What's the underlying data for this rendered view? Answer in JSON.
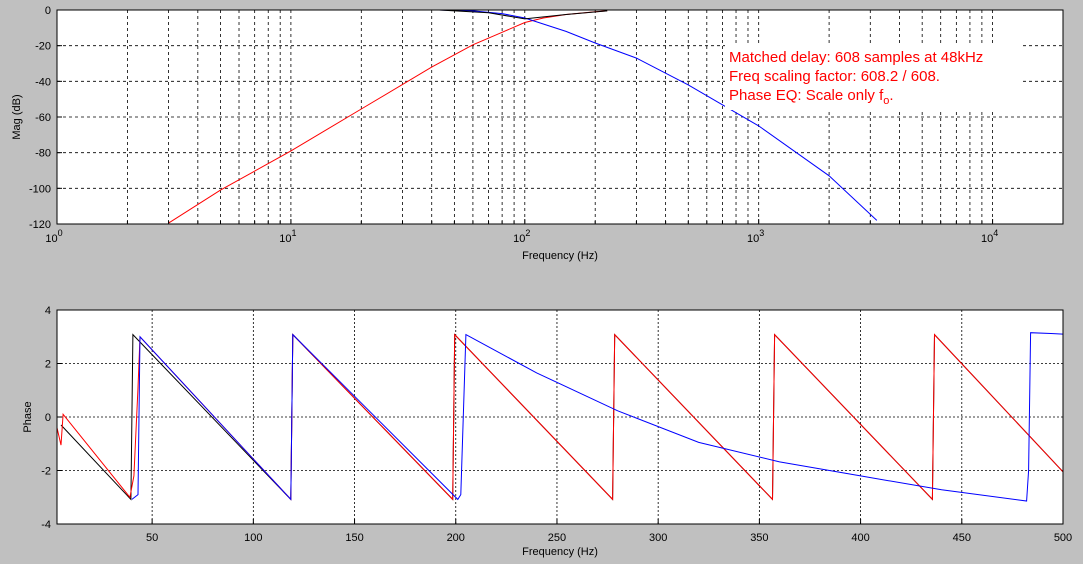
{
  "chart_data": [
    {
      "type": "line",
      "xscale": "log",
      "xlim": [
        1,
        20000
      ],
      "ylim": [
        -120,
        0
      ],
      "xlabel": "Frequency (Hz)",
      "ylabel": "Mag (dB)",
      "grid": true,
      "xtick_labels": [
        {
          "base": "10",
          "exp": "0",
          "x": 1
        },
        {
          "base": "10",
          "exp": "1",
          "x": 10
        },
        {
          "base": "10",
          "exp": "2",
          "x": 100
        },
        {
          "base": "10",
          "exp": "3",
          "x": 1000
        },
        {
          "base": "10",
          "exp": "4",
          "x": 10000
        }
      ],
      "ytick_labels": [
        "0",
        "-20",
        "-40",
        "-60",
        "-80",
        "-100",
        "-120"
      ],
      "yticks": [
        0,
        -20,
        -40,
        -60,
        -80,
        -100,
        -120
      ],
      "annotations": [
        "Matched delay: 608 samples at 48kHz",
        "Freq scaling factor: 608.2 / 608.",
        "Phase EQ: Scale only f"
      ],
      "annotation_subscript": "o",
      "annotation_suffix": ".",
      "annotation_color": "#ff0000",
      "series": [
        {
          "color": "#ff0000",
          "x": [
            3,
            5,
            10,
            20,
            40,
            60,
            80,
            100,
            120,
            150,
            200,
            225
          ],
          "y": [
            -119.5,
            -101,
            -79,
            -55.5,
            -32,
            -19.5,
            -12.5,
            -7,
            -4.5,
            -2.5,
            -1,
            -0.5
          ]
        },
        {
          "color": "#0000ff",
          "x": [
            43,
            60,
            80,
            100,
            150,
            200,
            300,
            500,
            1000,
            2000,
            3200
          ],
          "y": [
            0,
            -0.5,
            -2,
            -4.5,
            -12,
            -18.5,
            -27,
            -42,
            -65,
            -93,
            -118
          ]
        },
        {
          "color": "#000000",
          "x": [
            43,
            70,
            100,
            150,
            225
          ],
          "y": [
            0,
            -1.5,
            -5,
            -2.5,
            -0.5
          ]
        }
      ]
    },
    {
      "type": "line",
      "xlim": [
        3,
        500
      ],
      "ylim": [
        -4,
        4
      ],
      "xlabel": "Frequency (Hz)",
      "ylabel": "Phase",
      "grid": true,
      "xticks": [
        50,
        100,
        150,
        200,
        250,
        300,
        350,
        400,
        450,
        500
      ],
      "xtick_labels": [
        "50",
        "100",
        "150",
        "200",
        "250",
        "300",
        "350",
        "400",
        "450",
        "500"
      ],
      "yticks": [
        4,
        2,
        0,
        -2,
        -4
      ],
      "ytick_labels": [
        "4",
        "2",
        "0",
        "-2",
        "-4"
      ],
      "series": [
        {
          "color": "#000000",
          "x": [
            5,
            39.5,
            40.5,
            118.5,
            119.5,
            198.5,
            199.5,
            277.5,
            278.5,
            356.5,
            357.5,
            435.5,
            436.5,
            500
          ],
          "y": [
            -0.3,
            -3.08,
            3.08,
            -3.08,
            3.08,
            -3.08,
            3.08,
            -3.08,
            3.08,
            -3.08,
            3.08,
            -3.08,
            3.08,
            -2.05
          ]
        },
        {
          "color": "#ff0000",
          "x": [
            3,
            5,
            6,
            39,
            41,
            43,
            44,
            118.5,
            119.5,
            198.5,
            199.5,
            277.5,
            278.5,
            356.5,
            357.5,
            435.5,
            436.5,
            500
          ],
          "y": [
            -0.4,
            -1.05,
            0.1,
            -3.0,
            -2.2,
            1.1,
            3.0,
            -3.08,
            3.08,
            -3.08,
            3.08,
            -3.08,
            3.08,
            -3.08,
            3.08,
            -3.08,
            3.08,
            -2.05
          ]
        },
        {
          "color": "#0000ff",
          "x": [
            40,
            43,
            44,
            118.5,
            119.5,
            201,
            202.5,
            205,
            240,
            280,
            320,
            360,
            400,
            440,
            482,
            483,
            484,
            494,
            500
          ],
          "y": [
            -3.08,
            -2.9,
            3.0,
            -3.08,
            3.08,
            -3.08,
            -2.9,
            3.08,
            1.65,
            0.23,
            -0.95,
            -1.68,
            -2.2,
            -2.72,
            -3.14,
            -2.0,
            3.15,
            3.12,
            3.1
          ]
        }
      ]
    }
  ]
}
